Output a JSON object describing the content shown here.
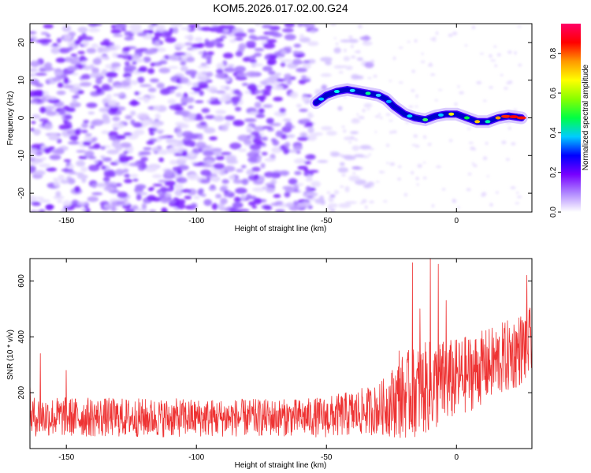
{
  "title": "KOM5.2026.017.02.00.G24",
  "chart_data": [
    {
      "type": "heatmap",
      "name": "spectrogram",
      "xlabel": "Height of straight line (km)",
      "ylabel": "Frequency (Hz)",
      "xlim": [
        -164,
        29
      ],
      "ylim": [
        -25,
        25
      ],
      "xticks": [
        -150,
        -100,
        -50,
        0
      ],
      "yticks": [
        -20,
        -10,
        0,
        10,
        20
      ],
      "xtick_labels": [
        "-150",
        "-100",
        "-50",
        "0"
      ],
      "ytick_labels": [
        "-20",
        "-10",
        "0",
        "10",
        "20"
      ],
      "ridge": {
        "x": [
          -54,
          -50,
          -46,
          -42,
          -38,
          -34,
          -30,
          -27,
          -24,
          -20,
          -16,
          -12,
          -8,
          -4,
          0,
          4,
          8,
          12,
          16,
          20,
          25
        ],
        "y": [
          4,
          6,
          7,
          7.5,
          7,
          6.5,
          6,
          5,
          3,
          1,
          0,
          -0.5,
          0.5,
          1,
          1,
          0,
          -1,
          -1,
          0,
          0.5,
          0
        ]
      },
      "noise_region": {
        "x": [
          -164,
          -55
        ],
        "y": [
          -25,
          25
        ]
      }
    },
    {
      "type": "colorbar",
      "name": "amplitude-colorbar",
      "label": "Normalized spectral amplitude",
      "range": [
        0,
        0.95
      ],
      "ticks": [
        0.0,
        0.2,
        0.4,
        0.6,
        0.8
      ],
      "tick_labels": [
        "0.0",
        "0.2",
        "0.4",
        "0.6",
        "0.8"
      ],
      "colormap": [
        "#ffffff",
        "#b088ff",
        "#7700ff",
        "#0000ff",
        "#00ccff",
        "#00ff44",
        "#88ff00",
        "#ffff00",
        "#ff9900",
        "#ff0000",
        "#ff0066"
      ]
    },
    {
      "type": "line",
      "name": "snr",
      "xlabel": "Height of straight line (km)",
      "ylabel": "SNR (10 * v/v)",
      "xlim": [
        -164,
        29
      ],
      "ylim": [
        0,
        680
      ],
      "xticks": [
        -150,
        -100,
        -50,
        0
      ],
      "yticks": [
        200,
        400,
        600
      ],
      "xtick_labels": [
        "-150",
        "-100",
        "-50",
        "0"
      ],
      "ytick_labels": [
        "200",
        "400",
        "600"
      ],
      "color": "#ee3333",
      "trend": {
        "x": [
          -164,
          -120,
          -80,
          -50,
          -30,
          -20,
          -10,
          0,
          10,
          20,
          29
        ],
        "y": [
          115,
          110,
          110,
          112,
          140,
          190,
          220,
          250,
          290,
          330,
          380
        ]
      },
      "noise_amplitude": {
        "x": [
          -164,
          -60,
          -30,
          -20,
          -10,
          0,
          10,
          29
        ],
        "y": [
          60,
          55,
          75,
          130,
          140,
          120,
          110,
          110
        ]
      },
      "spikes": [
        {
          "x": -164,
          "y": 230
        },
        {
          "x": -160,
          "y": 340
        },
        {
          "x": -150,
          "y": 280
        },
        {
          "x": -22,
          "y": 350
        },
        {
          "x": -17,
          "y": 665
        },
        {
          "x": -14,
          "y": 500
        },
        {
          "x": -10,
          "y": 680
        },
        {
          "x": -7,
          "y": 660
        },
        {
          "x": -4,
          "y": 530
        },
        {
          "x": 27,
          "y": 620
        }
      ]
    }
  ]
}
